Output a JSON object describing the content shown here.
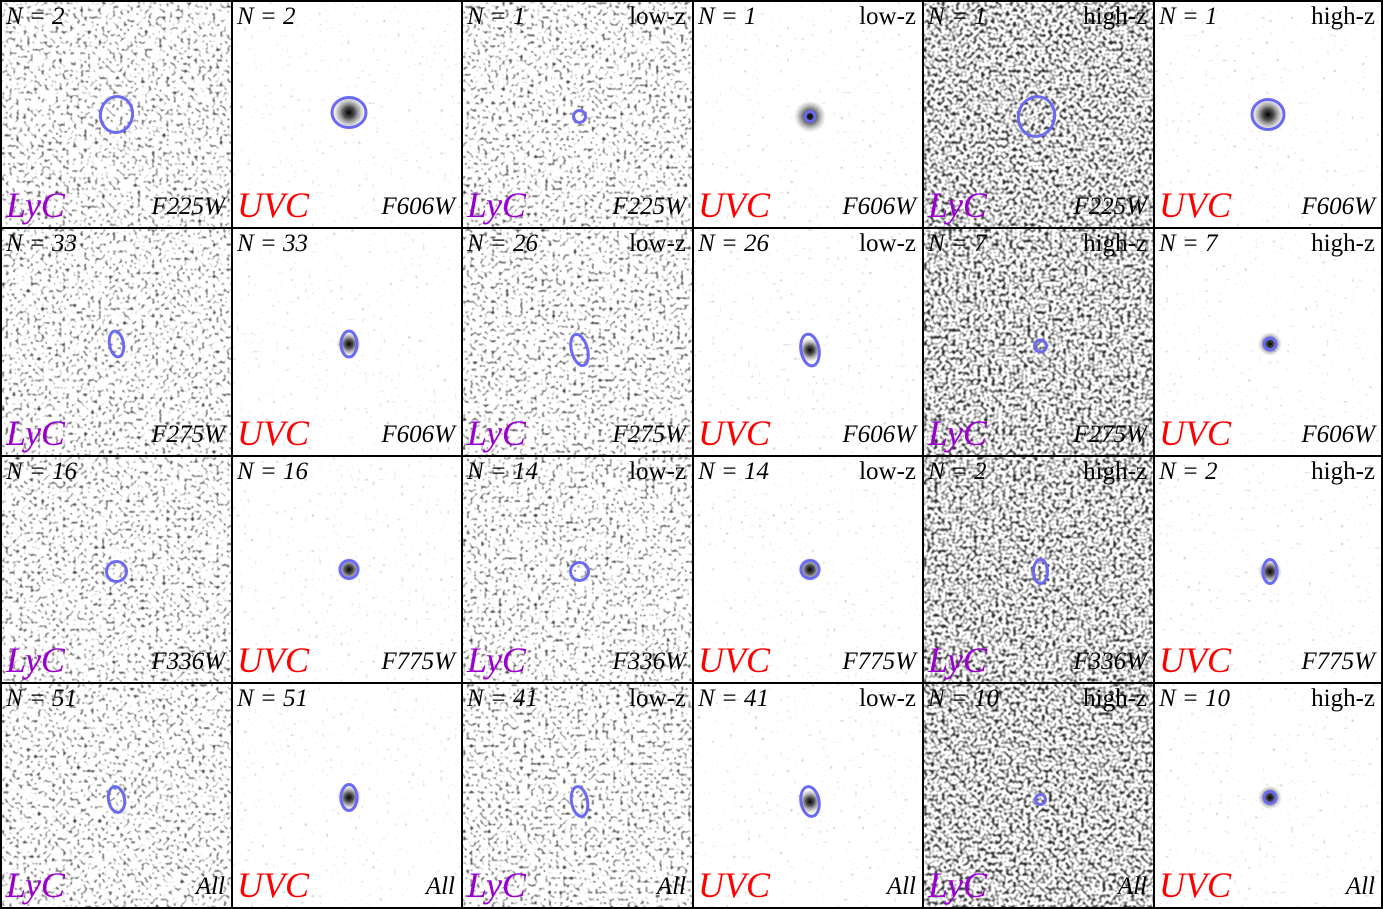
{
  "panels": [
    [
      {
        "n": "N = 2",
        "band": "LyC",
        "filter": "F225W"
      },
      {
        "n": "N = 2",
        "band": "UVC",
        "filter": "F606W"
      },
      {
        "n": "N = 1",
        "tag": "low-z",
        "band": "LyC",
        "filter": "F225W"
      },
      {
        "n": "N = 1",
        "tag": "low-z",
        "band": "UVC",
        "filter": "F606W"
      },
      {
        "n": "N = 1",
        "tag": "high-z",
        "band": "LyC",
        "filter": "F225W"
      },
      {
        "n": "N = 1",
        "tag": "high-z",
        "band": "UVC",
        "filter": "F606W"
      }
    ],
    [
      {
        "n": "N = 33",
        "band": "LyC",
        "filter": "F275W"
      },
      {
        "n": "N = 33",
        "band": "UVC",
        "filter": "F606W"
      },
      {
        "n": "N = 26",
        "tag": "low-z",
        "band": "LyC",
        "filter": "F275W"
      },
      {
        "n": "N = 26",
        "tag": "low-z",
        "band": "UVC",
        "filter": "F606W"
      },
      {
        "n": "N = 7",
        "tag": "high-z",
        "band": "LyC",
        "filter": "F275W"
      },
      {
        "n": "N = 7",
        "tag": "high-z",
        "band": "UVC",
        "filter": "F606W"
      }
    ],
    [
      {
        "n": "N = 16",
        "band": "LyC",
        "filter": "F336W"
      },
      {
        "n": "N = 16",
        "band": "UVC",
        "filter": "F775W"
      },
      {
        "n": "N = 14",
        "tag": "low-z",
        "band": "LyC",
        "filter": "F336W"
      },
      {
        "n": "N = 14",
        "tag": "low-z",
        "band": "UVC",
        "filter": "F775W"
      },
      {
        "n": "N = 2",
        "tag": "high-z",
        "band": "LyC",
        "filter": "F336W"
      },
      {
        "n": "N = 2",
        "tag": "high-z",
        "band": "UVC",
        "filter": "F775W"
      }
    ],
    [
      {
        "n": "N = 51",
        "band": "LyC",
        "filter": "All"
      },
      {
        "n": "N = 51",
        "band": "UVC",
        "filter": "All"
      },
      {
        "n": "N = 41",
        "tag": "low-z",
        "band": "LyC",
        "filter": "All"
      },
      {
        "n": "N = 41",
        "tag": "low-z",
        "band": "UVC",
        "filter": "All"
      },
      {
        "n": "N = 10",
        "tag": "high-z",
        "band": "LyC",
        "filter": "All"
      },
      {
        "n": "N = 10",
        "tag": "high-z",
        "band": "UVC",
        "filter": "All"
      }
    ]
  ]
}
